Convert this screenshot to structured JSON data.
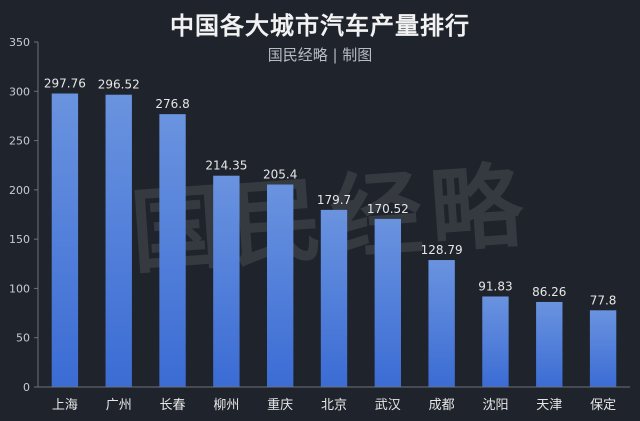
{
  "chart_data": {
    "type": "bar",
    "title": "中国各大城市汽车产量排行",
    "subtitle": "国民经略 | 制图",
    "watermark": "国民经略",
    "categories": [
      "上海",
      "广州",
      "长春",
      "柳州",
      "重庆",
      "北京",
      "武汉",
      "成都",
      "沈阳",
      "天津",
      "保定"
    ],
    "values": [
      297.76,
      296.52,
      276.8,
      214.35,
      205.4,
      179.7,
      170.52,
      128.79,
      91.83,
      86.26,
      77.8
    ],
    "value_labels": [
      "297.76",
      "296.52",
      "276.8",
      "214.35",
      "205.4",
      "179.7",
      "170.52",
      "128.79",
      "91.83",
      "86.26",
      "77.8"
    ],
    "ylim": [
      0,
      350
    ],
    "yticks": [
      0,
      50,
      100,
      150,
      200,
      250,
      300,
      350
    ],
    "grid": false,
    "colors": {
      "bar_top": "#6a93df",
      "bar_bottom": "#3b6cd4",
      "axis": "#6b717b",
      "label": "#e6e6e6"
    }
  }
}
